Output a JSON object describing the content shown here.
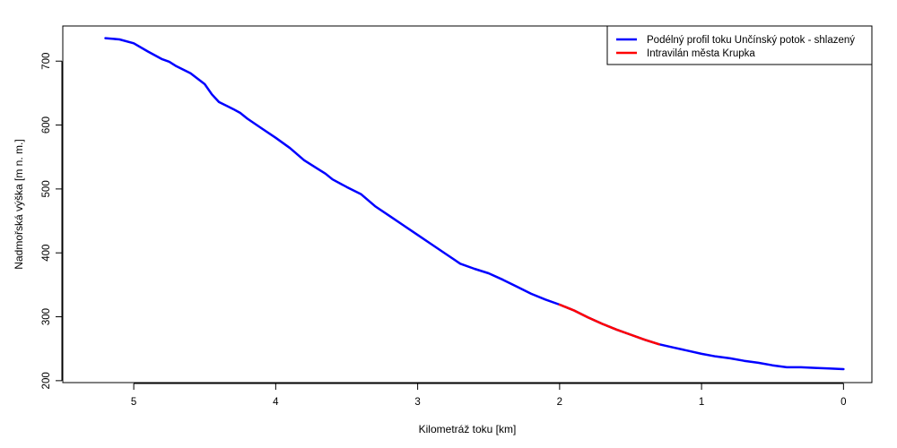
{
  "chart_data": {
    "type": "line",
    "title": "",
    "xlabel": "Kilometráž toku [km]",
    "ylabel": "Nadmořská výška [m n. m.]",
    "xlim": [
      5.5,
      -0.2
    ],
    "ylim": [
      197,
      755
    ],
    "x_reversed": true,
    "grid": false,
    "legend_position": "top-right",
    "x_ticks": [
      {
        "value": 5,
        "label": "5"
      },
      {
        "value": 4,
        "label": "4"
      },
      {
        "value": 3,
        "label": "3"
      },
      {
        "value": 2,
        "label": "2"
      },
      {
        "value": 1,
        "label": "1"
      },
      {
        "value": 0,
        "label": "0"
      }
    ],
    "y_ticks": [
      {
        "value": 200,
        "label": "200"
      },
      {
        "value": 300,
        "label": "300"
      },
      {
        "value": 400,
        "label": "400"
      },
      {
        "value": 500,
        "label": "500"
      },
      {
        "value": 600,
        "label": "600"
      },
      {
        "value": 700,
        "label": "700"
      }
    ],
    "series": [
      {
        "name": "Podélný profil toku Unčínský potok - shlazený",
        "color": "#0000ff",
        "x": [
          5.2,
          5.1,
          5.0,
          4.9,
          4.8,
          4.75,
          4.7,
          4.6,
          4.5,
          4.45,
          4.4,
          4.3,
          4.25,
          4.2,
          4.1,
          4.0,
          3.9,
          3.8,
          3.7,
          3.65,
          3.6,
          3.5,
          3.4,
          3.3,
          3.2,
          3.1,
          3.0,
          2.9,
          2.8,
          2.7,
          2.6,
          2.5,
          2.4,
          2.3,
          2.2,
          2.1,
          2.0,
          1.9,
          1.8,
          1.7,
          1.6,
          1.5,
          1.4,
          1.3,
          1.2,
          1.1,
          1.0,
          0.9,
          0.8,
          0.7,
          0.6,
          0.5,
          0.4,
          0.3,
          0.2,
          0.1,
          0.0
        ],
        "y": [
          736,
          734,
          728,
          715,
          703,
          699,
          692,
          681,
          664,
          648,
          636,
          625,
          619,
          610,
          595,
          580,
          564,
          545,
          531,
          524,
          515,
          503,
          492,
          473,
          458,
          443,
          428,
          413,
          398,
          383,
          375,
          368,
          358,
          347,
          336,
          327,
          319,
          310,
          299,
          289,
          280,
          272,
          264,
          257,
          252,
          247,
          242,
          238,
          235,
          231,
          228,
          224,
          221,
          221,
          220,
          219,
          218
        ]
      },
      {
        "name": "Intravilán města Krupka",
        "color": "#ff0000",
        "x": [
          2.0,
          1.9,
          1.8,
          1.7,
          1.6,
          1.5,
          1.4,
          1.3
        ],
        "y": [
          319,
          310,
          299,
          289,
          280,
          272,
          264,
          257
        ]
      }
    ]
  }
}
